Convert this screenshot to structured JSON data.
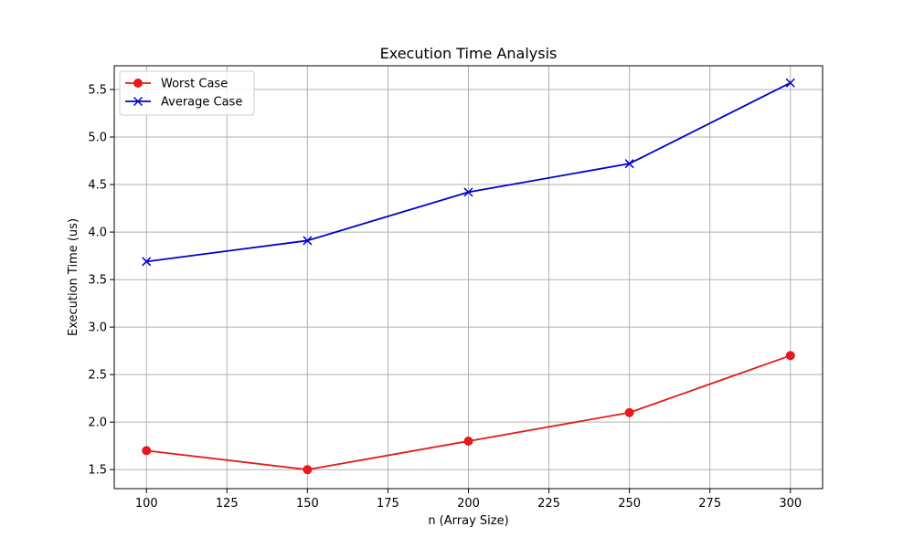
{
  "chart_data": {
    "type": "line",
    "title": "Execution Time Analysis",
    "xlabel": "n (Array Size)",
    "ylabel": "Execution Time (us)",
    "x": [
      100,
      150,
      200,
      250,
      300
    ],
    "xlim": [
      90,
      310
    ],
    "ylim": [
      1.3,
      5.75
    ],
    "xticks": [
      100,
      125,
      150,
      175,
      200,
      225,
      250,
      275,
      300
    ],
    "yticks": [
      1.5,
      2.0,
      2.5,
      3.0,
      3.5,
      4.0,
      4.5,
      5.0,
      5.5
    ],
    "ytick_labels": [
      "1.5",
      "2.0",
      "2.5",
      "3.0",
      "3.5",
      "4.0",
      "4.5",
      "5.0",
      "5.5"
    ],
    "grid": true,
    "legend_position": "top-left",
    "series": [
      {
        "name": "Worst Case",
        "values": [
          1.7,
          1.5,
          1.8,
          2.1,
          2.7
        ],
        "color": "#e41a1c",
        "marker": "circle"
      },
      {
        "name": "Average Case",
        "values": [
          3.69,
          3.91,
          4.42,
          4.72,
          5.57
        ],
        "color": "#0000cc",
        "marker": "x"
      }
    ]
  }
}
